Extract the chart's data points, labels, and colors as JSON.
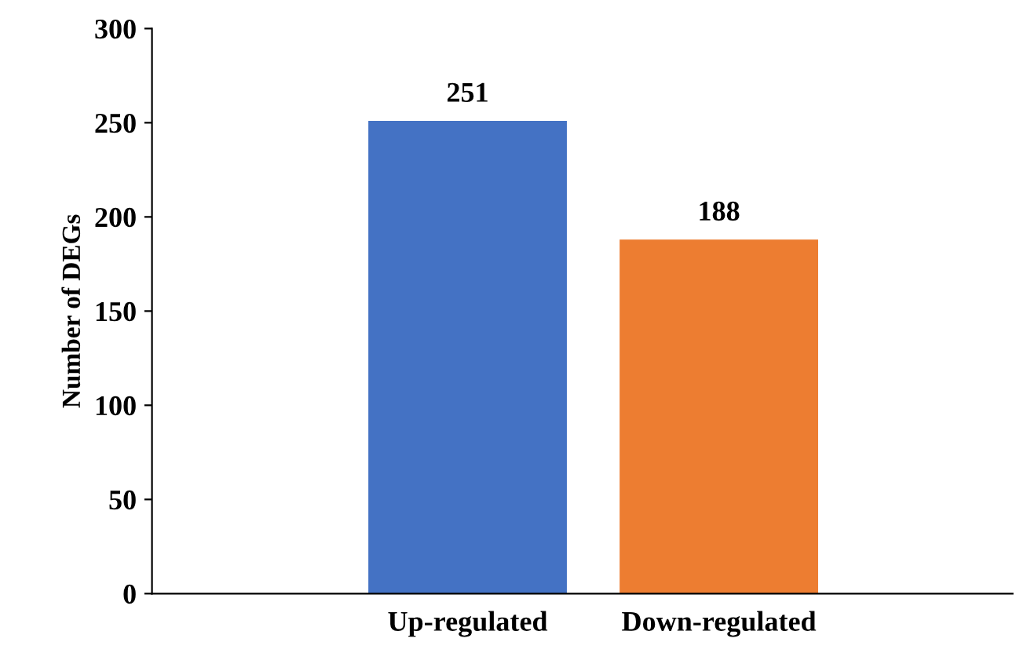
{
  "chart_data": {
    "type": "bar",
    "ylabel": "Number of DEGs",
    "categories": [
      "Up-regulated",
      "Down-regulated"
    ],
    "values": [
      251,
      188
    ],
    "colors": [
      "#4472c4",
      "#ed7d31"
    ],
    "ylim": [
      0,
      300
    ],
    "yticks": [
      0,
      50,
      100,
      150,
      200,
      250,
      300
    ],
    "data_labels": true,
    "grid": false,
    "legend": false
  }
}
